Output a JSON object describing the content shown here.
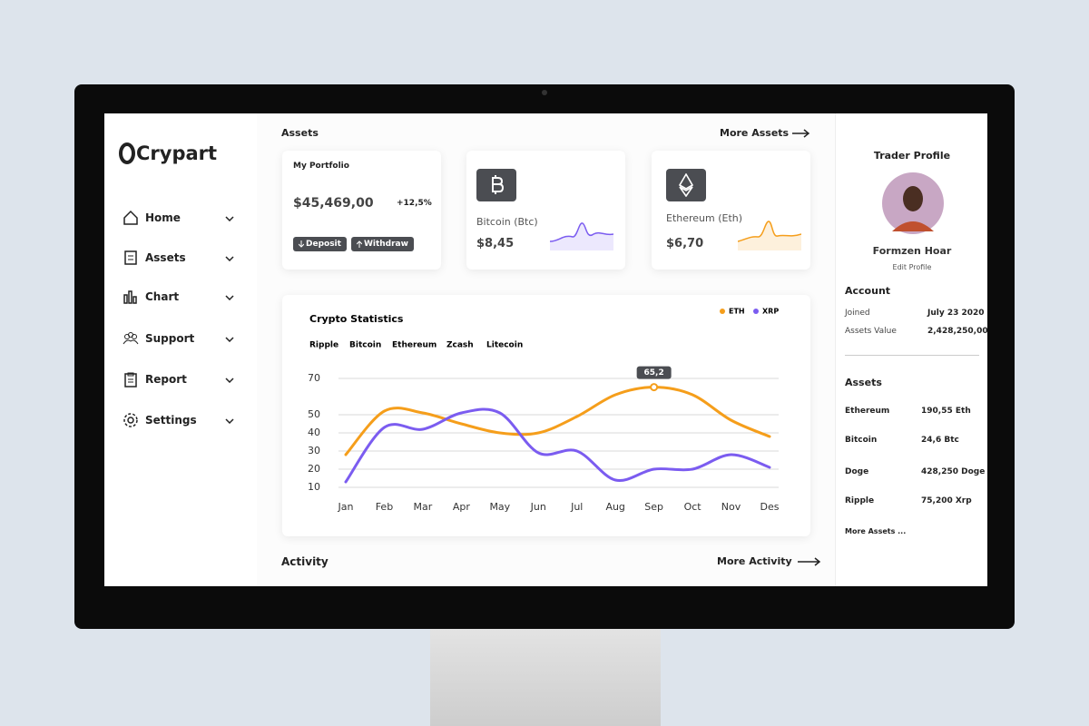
{
  "brand": "Crypart",
  "nav": [
    "Home",
    "Assets",
    "Chart",
    "Support",
    "Report",
    "Settings"
  ],
  "assets": {
    "title": "Assets",
    "more": "More Assets",
    "portfolio": {
      "title": "My Portfolio",
      "value": "$45,469,00",
      "change": "+12,5%",
      "deposit": "Deposit",
      "withdraw": "Withdraw"
    },
    "coins": [
      {
        "name": "Bitcoin (Btc)",
        "price": "$8,45"
      },
      {
        "name": "Ethereum (Eth)",
        "price": "$6,70"
      }
    ]
  },
  "chart_data": {
    "type": "line",
    "title": "Crypto Statistics",
    "tabs": [
      "Ripple",
      "Bitcoin",
      "Ethereum",
      "Zcash",
      "Litecoin"
    ],
    "categories": [
      "Jan",
      "Feb",
      "Mar",
      "Apr",
      "May",
      "Jun",
      "Jul",
      "Aug",
      "Sep",
      "Oct",
      "Nov",
      "Des"
    ],
    "series": [
      {
        "name": "ETH",
        "color": "#f59e1b",
        "values": [
          28,
          52,
          51,
          45,
          40,
          40,
          49,
          61,
          65.2,
          61,
          47,
          38
        ],
        "value_labels": [
          null,
          null,
          null,
          null,
          null,
          null,
          null,
          null,
          "65,2",
          null,
          null,
          null
        ]
      },
      {
        "name": "XRP",
        "color": "#7b5cf0",
        "values": [
          13,
          43,
          42,
          51,
          51,
          29,
          30,
          14,
          20,
          20,
          28,
          21
        ]
      }
    ],
    "ylim": [
      5,
      75
    ],
    "yticks": [
      70,
      50,
      40,
      30,
      20,
      10
    ],
    "grid": true,
    "legend": "top-right"
  },
  "activity": {
    "title": "Activity",
    "more": "More Activity"
  },
  "profile": {
    "title": "Trader Profile",
    "name": "Formzen Hoar",
    "edit": "Edit Profile"
  },
  "account": {
    "title": "Account",
    "rows": [
      [
        "Joined",
        "July 23 2020"
      ],
      [
        "Assets Value",
        "2,428,250,00"
      ]
    ]
  },
  "holdings": {
    "title": "Assets",
    "rows": [
      [
        "Ethereum",
        "190,55 Eth"
      ],
      [
        "Bitcoin",
        "24,6 Btc"
      ],
      [
        "Doge",
        "428,250 Doge"
      ],
      [
        "Ripple",
        "75,200 Xrp"
      ]
    ],
    "more": "More Assets ..."
  }
}
